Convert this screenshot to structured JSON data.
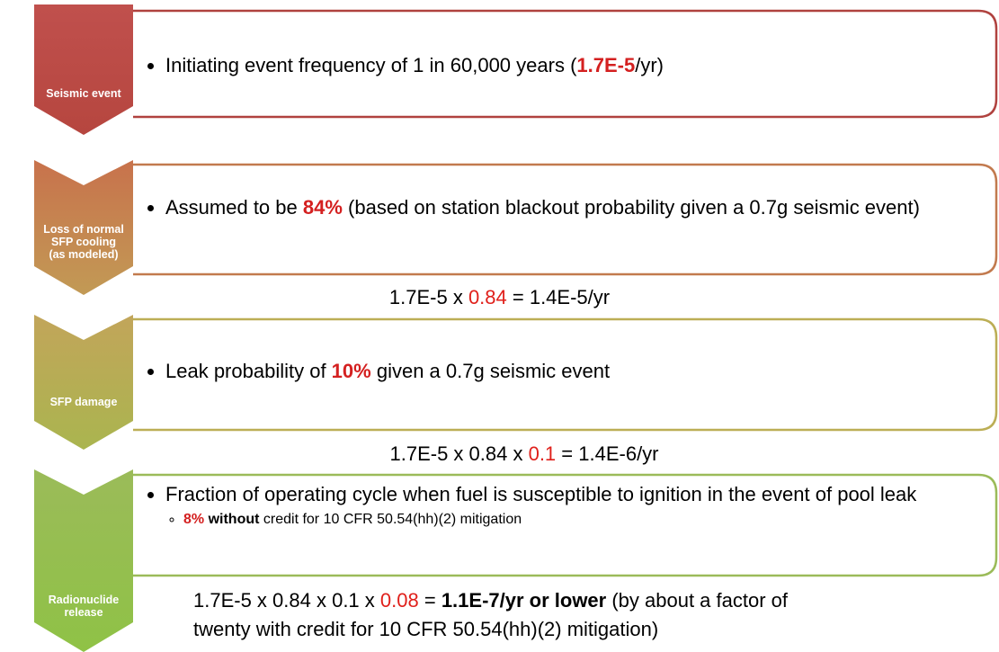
{
  "stages": [
    {
      "label": [
        "Seismic event"
      ],
      "bullet": [
        "Initiating event frequency of 1 in 60,000 years (",
        "1.7E-5",
        "/yr)"
      ]
    },
    {
      "label": [
        "Loss of normal",
        "SFP cooling",
        "(as modeled)"
      ],
      "bullet": [
        "Assumed to be ",
        "84%",
        "  (based on station blackout probability given a 0.7g seismic event)"
      ]
    },
    {
      "label": [
        "SFP damage"
      ],
      "bullet": [
        "Leak probability of ",
        "10%",
        "  given a 0.7g seismic event"
      ]
    },
    {
      "label": [
        "Radionuclide",
        "release"
      ],
      "bullet": [
        "Fraction of operating cycle when fuel is susceptible to ignition in the event of pool leak"
      ],
      "sub_bullet": [
        "8%",
        " without",
        " credit for 10 CFR 50.54(hh)(2) mitigation"
      ]
    }
  ],
  "formulas": [
    [
      "1.7E-5 x ",
      "0.84",
      " = 1.4E-5/yr"
    ],
    [
      "1.7E-5 x 0.84 x ",
      "0.1",
      " = 1.4E-6/yr"
    ],
    [
      "1.7E-5 x 0.84 x 0.1 x ",
      "0.08",
      " = ",
      "1.1E-7/yr or lower",
      " (by about a factor of twenty with credit for 10 CFR 50.54(hh)(2) mitigation)"
    ]
  ]
}
